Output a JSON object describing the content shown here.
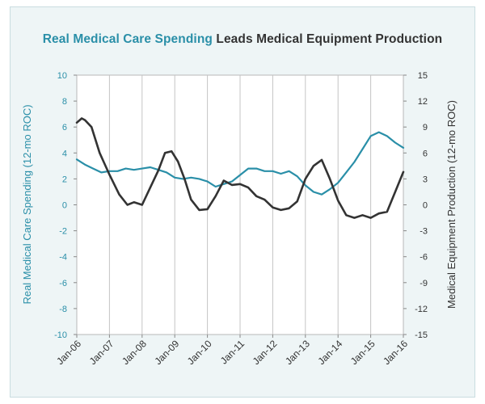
{
  "chart_data": {
    "type": "line",
    "title_part1": "Real Medical Care Spending",
    "title_part2": "Leads Medical Equipment Production",
    "xlabel": "",
    "ylabel_left": "Real Medical Care Spending (12-mo ROC)",
    "ylabel_right": "Medical Equipment Production (12-mo ROC)",
    "x_ticks": [
      "Jan-06",
      "Jan-07",
      "Jan-08",
      "Jan-09",
      "Jan-10",
      "Jan-11",
      "Jan-12",
      "Jan-13",
      "Jan-14",
      "Jan-15",
      "Jan-16"
    ],
    "x_range": [
      2006,
      2016
    ],
    "y_left_ticks": [
      10,
      8,
      6,
      4,
      2,
      0,
      -2,
      -4,
      -6,
      -8,
      -10
    ],
    "y_right_ticks": [
      15,
      12,
      9,
      6,
      3,
      0,
      -3,
      -6,
      -9,
      -12,
      -15
    ],
    "y_left_range": [
      -10,
      10
    ],
    "y_right_range": [
      -15,
      15
    ],
    "grid": "vertical",
    "colors": {
      "spending": "#2a8fa8",
      "production": "#333333"
    },
    "series": [
      {
        "axis": "left",
        "color": "#2a8fa8",
        "x": [
          2006.0,
          2006.25,
          2006.5,
          2006.75,
          2007.0,
          2007.25,
          2007.5,
          2007.75,
          2008.0,
          2008.25,
          2008.5,
          2008.75,
          2009.0,
          2009.25,
          2009.5,
          2009.75,
          2010.0,
          2010.25,
          2010.5,
          2010.75,
          2011.0,
          2011.25,
          2011.5,
          2011.75,
          2012.0,
          2012.25,
          2012.5,
          2012.75,
          2013.0,
          2013.25,
          2013.5,
          2013.75,
          2014.0,
          2014.25,
          2014.5,
          2014.75,
          2015.0,
          2015.25,
          2015.5,
          2015.75,
          2016.0
        ],
        "values": [
          3.5,
          3.1,
          2.8,
          2.5,
          2.6,
          2.6,
          2.8,
          2.7,
          2.8,
          2.9,
          2.7,
          2.5,
          2.1,
          2.0,
          2.1,
          2.0,
          1.8,
          1.4,
          1.6,
          1.8,
          2.3,
          2.8,
          2.8,
          2.6,
          2.6,
          2.4,
          2.6,
          2.2,
          1.5,
          1.0,
          0.8,
          1.2,
          1.7,
          2.5,
          3.3,
          4.3,
          5.3,
          5.6,
          5.3,
          4.8,
          4.4
        ]
      },
      {
        "axis": "right",
        "color": "#333333",
        "x": [
          2006.0,
          2006.15,
          2006.25,
          2006.45,
          2006.7,
          2007.0,
          2007.3,
          2007.55,
          2007.75,
          2008.0,
          2008.25,
          2008.5,
          2008.7,
          2008.9,
          2009.1,
          2009.3,
          2009.5,
          2009.75,
          2010.0,
          2010.25,
          2010.5,
          2010.75,
          2011.0,
          2011.25,
          2011.5,
          2011.75,
          2012.0,
          2012.25,
          2012.5,
          2012.75,
          2013.0,
          2013.25,
          2013.5,
          2013.75,
          2014.0,
          2014.25,
          2014.5,
          2014.75,
          2015.0,
          2015.25,
          2015.5,
          2015.75,
          2016.0
        ],
        "values": [
          9.5,
          10.0,
          9.8,
          9.0,
          6.0,
          3.5,
          1.2,
          0.0,
          0.3,
          0.0,
          2.0,
          4.0,
          6.0,
          6.2,
          5.0,
          3.0,
          0.6,
          -0.6,
          -0.5,
          1.0,
          2.8,
          2.3,
          2.4,
          2.0,
          1.0,
          0.6,
          -0.3,
          -0.6,
          -0.4,
          0.4,
          3.0,
          4.5,
          5.2,
          3.0,
          0.5,
          -1.2,
          -1.5,
          -1.2,
          -1.5,
          -1.0,
          -0.8,
          1.5,
          3.8
        ]
      }
    ]
  }
}
